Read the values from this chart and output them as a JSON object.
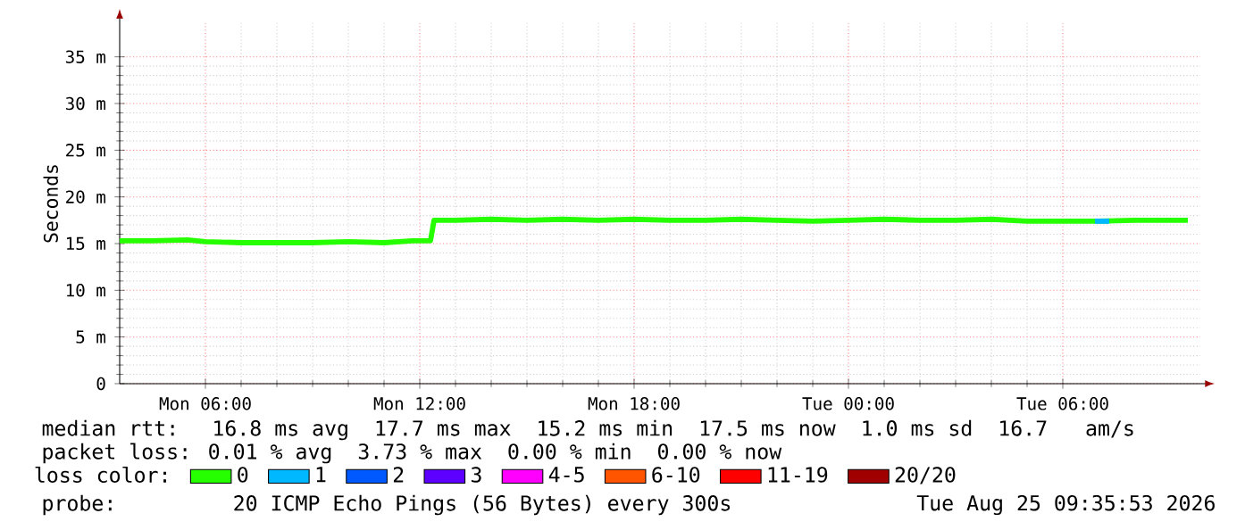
{
  "chart_data": {
    "type": "line",
    "ylabel": "Seconds",
    "xlim": [
      "2026-08-24T03:36",
      "2026-08-25T09:51"
    ],
    "ylim": [
      0,
      38.6
    ],
    "xticks": [
      {
        "value": "2026-08-24T06:00",
        "label": "Mon 06:00"
      },
      {
        "value": "2026-08-24T12:00",
        "label": "Mon 12:00"
      },
      {
        "value": "2026-08-24T18:00",
        "label": "Mon 18:00"
      },
      {
        "value": "2026-08-25T00:00",
        "label": "Tue 00:00"
      },
      {
        "value": "2026-08-25T06:00",
        "label": "Tue 06:00"
      }
    ],
    "yticks": [
      {
        "value": 0,
        "label": "0"
      },
      {
        "value": 5,
        "label": "5 m"
      },
      {
        "value": 10,
        "label": "10 m"
      },
      {
        "value": 15,
        "label": "15 m"
      },
      {
        "value": 20,
        "label": "20 m"
      },
      {
        "value": 25,
        "label": "25 m"
      },
      {
        "value": 30,
        "label": "30 m"
      },
      {
        "value": 35,
        "label": "35 m"
      }
    ],
    "grid": true,
    "legend": "bottom",
    "legend_title": "loss color:",
    "marker": "none",
    "line_style": "solid",
    "series": [
      {
        "name": "0",
        "color": "#26ff00",
        "x": [
          "2026-08-24T03:36",
          "2026-08-24T04:30",
          "2026-08-24T05:30",
          "2026-08-24T06:00",
          "2026-08-24T07:00",
          "2026-08-24T08:00",
          "2026-08-24T09:00",
          "2026-08-24T10:00",
          "2026-08-24T11:00",
          "2026-08-24T11:48",
          "2026-08-24T12:18",
          "2026-08-24T12:24",
          "2026-08-24T13:00",
          "2026-08-24T14:00",
          "2026-08-24T15:00",
          "2026-08-24T16:00",
          "2026-08-24T17:00",
          "2026-08-24T18:00",
          "2026-08-24T19:00",
          "2026-08-24T20:00",
          "2026-08-24T21:00",
          "2026-08-24T22:00",
          "2026-08-24T23:00",
          "2026-08-25T00:00",
          "2026-08-25T01:00",
          "2026-08-25T02:00",
          "2026-08-25T03:00",
          "2026-08-25T04:00",
          "2026-08-25T05:00",
          "2026-08-25T06:00",
          "2026-08-25T07:00",
          "2026-08-25T08:00",
          "2026-08-25T09:00",
          "2026-08-25T09:30"
        ],
        "values": [
          15.3,
          15.3,
          15.4,
          15.2,
          15.1,
          15.1,
          15.1,
          15.2,
          15.1,
          15.3,
          15.3,
          17.5,
          17.5,
          17.6,
          17.5,
          17.6,
          17.5,
          17.6,
          17.5,
          17.5,
          17.6,
          17.5,
          17.4,
          17.5,
          17.6,
          17.5,
          17.5,
          17.6,
          17.4,
          17.4,
          17.4,
          17.5,
          17.5,
          17.5
        ]
      },
      {
        "name": "1",
        "color": "#00b8ff",
        "x": [
          "2026-08-25T06:54",
          "2026-08-25T07:18"
        ],
        "values": [
          17.4,
          17.4
        ]
      },
      {
        "name": "2",
        "color": "#0059ff"
      },
      {
        "name": "3",
        "color": "#5e00ff"
      },
      {
        "name": "4-5",
        "color": "#ff00fe"
      },
      {
        "name": "6-10",
        "color": "#ff5500"
      },
      {
        "name": "11-19",
        "color": "#ff0000"
      },
      {
        "name": "20/20",
        "color": "#a10000"
      }
    ],
    "annotations": [
      "median rtt:  16.8 ms avg  17.7 ms max  15.2 ms min  17.5 ms now  1.0 ms sd  16.7   am/s",
      "packet loss: 0.01 % avg  3.73 % max  0.00 % min  0.00 % now",
      "probe:       20 ICMP Echo Pings (56 Bytes) every 300s",
      "Tue Aug 25 09:35:53 2026"
    ]
  }
}
